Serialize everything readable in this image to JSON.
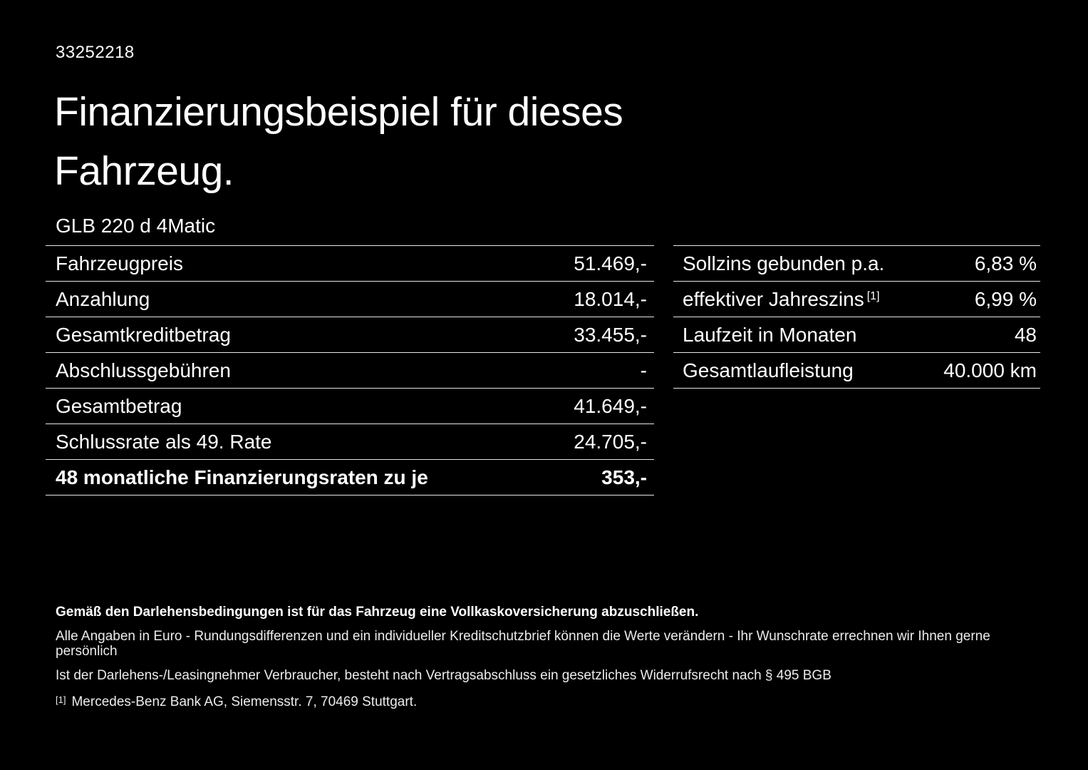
{
  "header": {
    "id_number": "33252218",
    "title_line1": "Finanzierungsbeispiel für dieses",
    "title_line2": "Fahrzeug.",
    "vehicle_model": "GLB 220 d 4Matic"
  },
  "left_table": {
    "rows": [
      {
        "label": "Fahrzeugpreis",
        "value": "51.469,-"
      },
      {
        "label": "Anzahlung",
        "value": "18.014,-"
      },
      {
        "label": "Gesamtkreditbetrag",
        "value": "33.455,-"
      },
      {
        "label": "Abschlussgebühren",
        "value": "-"
      },
      {
        "label": "Gesamtbetrag",
        "value": "41.649,-"
      },
      {
        "label": "Schlussrate als 49. Rate",
        "value": "24.705,-"
      },
      {
        "label": "48 monatliche Finanzierungsraten zu je",
        "value": "353,-"
      }
    ]
  },
  "right_table": {
    "rows": [
      {
        "label": "Sollzins gebunden p.a.",
        "value": "6,83 %"
      },
      {
        "label": "effektiver Jahreszins",
        "sup": "[1]",
        "value": "6,99 %"
      },
      {
        "label": "Laufzeit in Monaten",
        "value": "48"
      },
      {
        "label": "Gesamtlaufleistung",
        "value": "40.000 km"
      }
    ]
  },
  "footnotes": {
    "insurance_note": "Gemäß den Darlehensbedingungen ist für das Fahrzeug eine Vollkaskoversicherung abzuschließen.",
    "line1": "Alle Angaben in Euro - Rundungsdifferenzen und ein individueller Kreditschutzbrief können die Werte verändern - Ihr Wunschrate errechnen wir Ihnen gerne persönlich",
    "line2": "Ist der Darlehens-/Leasingnehmer Verbraucher, besteht nach Vertragsabschluss ein gesetzliches Widerrufsrecht nach § 495 BGB",
    "reference_marker": "[1]",
    "reference_text": "Mercedes-Benz Bank AG, Siemensstr. 7, 70469 Stuttgart."
  },
  "colors": {
    "background": "#000000",
    "text": "#ffffff",
    "divider": "#e6e6e6"
  }
}
